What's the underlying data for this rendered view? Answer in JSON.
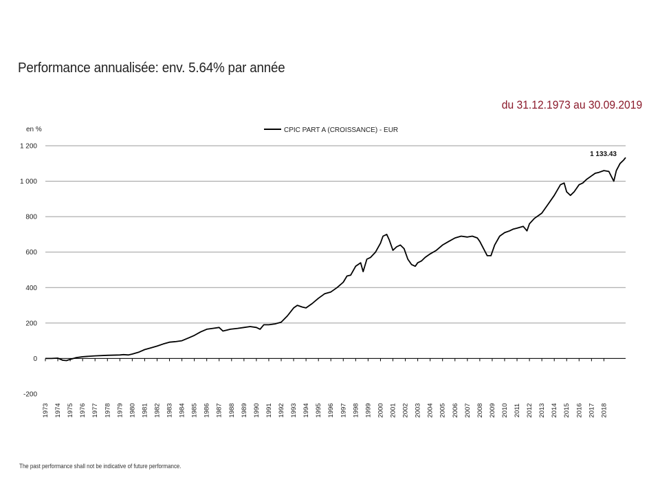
{
  "header": {
    "title": "Performance annualisée: env. 5.64% par année",
    "period": "du 31.12.1973 au 30.09.2019"
  },
  "footer": {
    "disclaimer": "The past performance shall not be indicative of future performance."
  },
  "colors": {
    "line": "#000000",
    "grid": "#9a9a9a",
    "period_text": "#8b1a2b"
  },
  "chart_data": {
    "type": "line",
    "title": "",
    "ylabel": "en %",
    "xlabel": "",
    "ylim": [
      -200,
      1200
    ],
    "yticks": [
      -200,
      0,
      200,
      400,
      600,
      800,
      1000,
      1200
    ],
    "ytick_labels": [
      "-200",
      "0",
      "200",
      "400",
      "600",
      "800",
      "1 000",
      "1 200"
    ],
    "xlim": [
      1973,
      2019.75
    ],
    "xtick_labels": [
      "1973",
      "1974",
      "1975",
      "1976",
      "1977",
      "1978",
      "1979",
      "1980",
      "1981",
      "1982",
      "1983",
      "1984",
      "1985",
      "1986",
      "1987",
      "1988",
      "1989",
      "1990",
      "1991",
      "1992",
      "1993",
      "1994",
      "1995",
      "1996",
      "1997",
      "1998",
      "1999",
      "2000",
      "2001",
      "2002",
      "2003",
      "2004",
      "2005",
      "2006",
      "2007",
      "2008",
      "2009",
      "2010",
      "2011",
      "2012",
      "2013",
      "2014",
      "2015",
      "2016",
      "2017",
      "2018"
    ],
    "legend_position": "top-center",
    "end_label": "1 133.43",
    "series": [
      {
        "name": "CPIC PART A (CROISSANCE) - EUR",
        "x": [
          1973.0,
          1973.5,
          1974.0,
          1974.4,
          1974.7,
          1975.0,
          1975.5,
          1976.0,
          1977.0,
          1978.0,
          1979.0,
          1979.3,
          1979.7,
          1980.0,
          1980.5,
          1981.0,
          1981.5,
          1982.0,
          1982.5,
          1983.0,
          1983.5,
          1984.0,
          1984.5,
          1985.0,
          1985.5,
          1986.0,
          1986.5,
          1987.0,
          1987.3,
          1987.6,
          1987.9,
          1988.5,
          1989.0,
          1989.5,
          1990.0,
          1990.3,
          1990.6,
          1991.0,
          1991.5,
          1992.0,
          1992.5,
          1993.0,
          1993.3,
          1993.7,
          1994.0,
          1994.5,
          1995.0,
          1995.5,
          1996.0,
          1996.5,
          1997.0,
          1997.3,
          1997.6,
          1998.0,
          1998.4,
          1998.6,
          1998.9,
          1999.2,
          1999.6,
          2000.0,
          2000.2,
          2000.5,
          2000.7,
          2001.0,
          2001.3,
          2001.6,
          2001.9,
          2002.2,
          2002.5,
          2002.8,
          2003.0,
          2003.3,
          2003.6,
          2004.0,
          2004.5,
          2005.0,
          2005.5,
          2006.0,
          2006.5,
          2007.0,
          2007.4,
          2007.8,
          2008.0,
          2008.3,
          2008.6,
          2008.9,
          2009.2,
          2009.6,
          2010.0,
          2010.4,
          2010.7,
          2011.0,
          2011.5,
          2011.8,
          2012.0,
          2012.4,
          2012.8,
          2013.0,
          2013.5,
          2014.0,
          2014.5,
          2014.8,
          2015.0,
          2015.3,
          2015.6,
          2016.0,
          2016.3,
          2016.6,
          2017.0,
          2017.3,
          2017.6,
          2018.0,
          2018.4,
          2018.8,
          2019.0,
          2019.3,
          2019.6,
          2019.75
        ],
        "values": [
          0,
          0,
          2,
          -10,
          -12,
          -5,
          5,
          10,
          15,
          18,
          20,
          22,
          20,
          25,
          35,
          50,
          60,
          70,
          82,
          92,
          95,
          100,
          115,
          130,
          150,
          165,
          170,
          175,
          155,
          160,
          165,
          170,
          175,
          180,
          175,
          165,
          190,
          190,
          195,
          205,
          240,
          285,
          300,
          290,
          285,
          310,
          340,
          365,
          375,
          400,
          430,
          465,
          470,
          520,
          540,
          490,
          560,
          570,
          600,
          650,
          690,
          700,
          670,
          610,
          630,
          640,
          620,
          560,
          530,
          520,
          540,
          550,
          570,
          590,
          610,
          640,
          660,
          680,
          690,
          685,
          690,
          680,
          660,
          620,
          580,
          580,
          640,
          690,
          710,
          720,
          730,
          735,
          745,
          720,
          760,
          790,
          810,
          820,
          870,
          920,
          980,
          990,
          940,
          920,
          940,
          980,
          990,
          1010,
          1030,
          1045,
          1050,
          1060,
          1055,
          1000,
          1060,
          1100,
          1120,
          1133.43
        ]
      }
    ]
  }
}
